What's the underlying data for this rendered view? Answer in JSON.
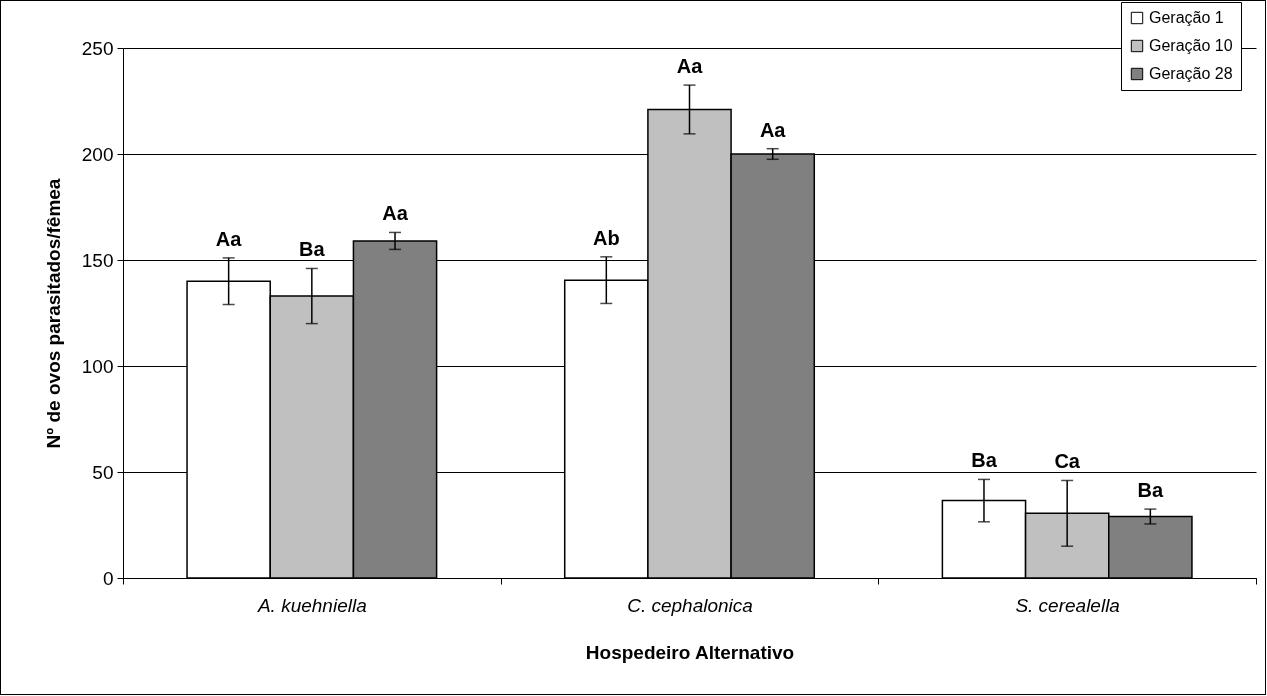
{
  "chart_data": {
    "type": "bar",
    "xlabel": "Hospedeiro Alternativo",
    "ylabel": "Nº de ovos parasitados/fêmea",
    "categories": [
      "A. kuehniella",
      "C. cephalonica",
      "S. cerealella"
    ],
    "series": [
      {
        "name": "Geração 1",
        "color": "#ffffff",
        "values": [
          140,
          140.5,
          36.5
        ],
        "errors": [
          11,
          11,
          10
        ],
        "value_labels": [
          "Aa",
          "Ab",
          "Ba"
        ]
      },
      {
        "name": "Geração 10",
        "color": "#c0c0c0",
        "values": [
          133,
          221,
          30.5
        ],
        "errors": [
          13,
          11.5,
          15.5
        ],
        "value_labels": [
          "Ba",
          "Aa",
          "Ca"
        ]
      },
      {
        "name": "Geração 28",
        "color": "#808080",
        "values": [
          159,
          200,
          29
        ],
        "errors": [
          4,
          2.5,
          3.5
        ],
        "value_labels": [
          "Aa",
          "Aa",
          "Ba"
        ]
      }
    ],
    "ylim": [
      0,
      250
    ],
    "yticks": [
      0,
      50,
      100,
      150,
      200,
      250
    ],
    "grid": "y",
    "legend": "top right"
  }
}
